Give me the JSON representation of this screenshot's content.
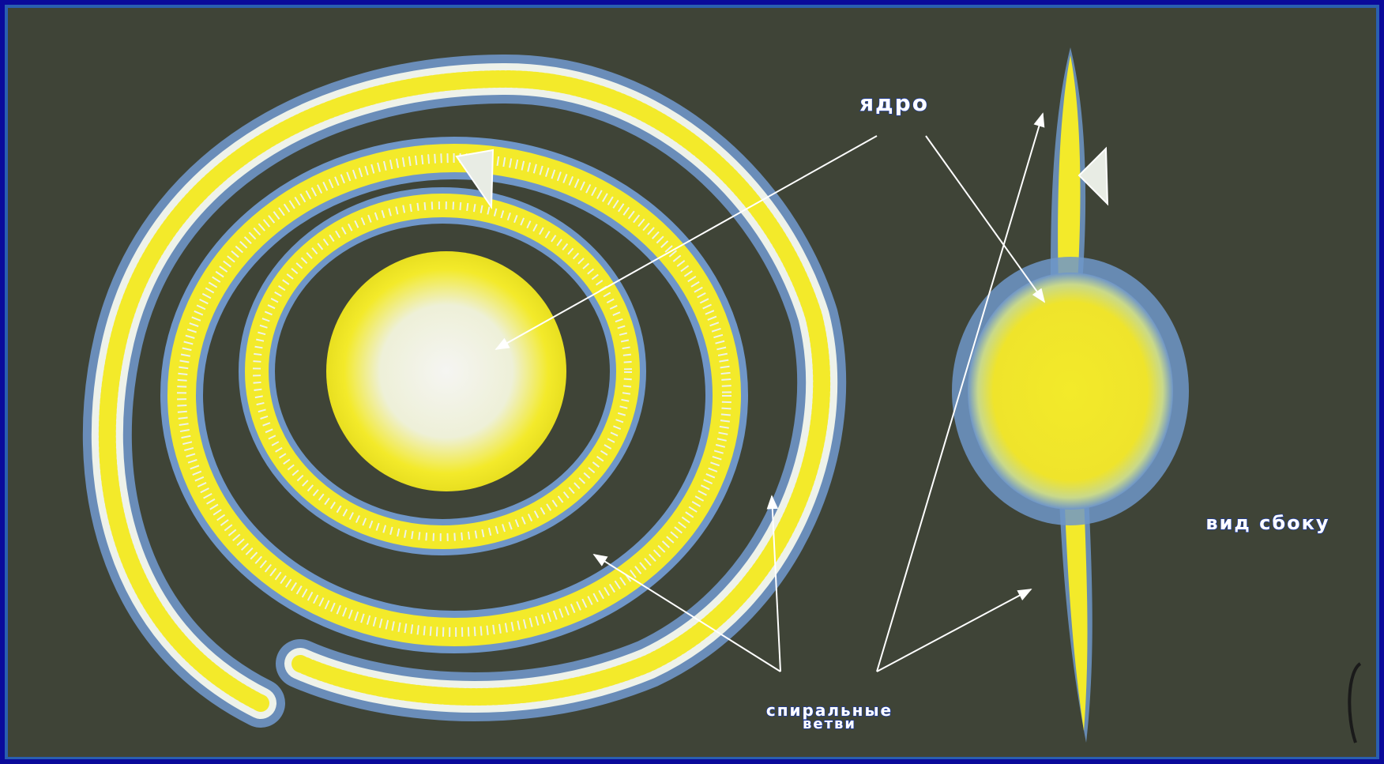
{
  "colors": {
    "frame": "#0a0a9a",
    "background": "#3f4437",
    "arm_yellow": "#f3ea2a",
    "arm_blue": "#6f96c8",
    "arm_white": "#eef2ea",
    "nucleus": "#eef0ee",
    "arrow": "#ffffff",
    "label_outline": "#1a3aa8"
  },
  "labels": {
    "nucleus": "ядро",
    "side_view": "вид сбоку",
    "spiral_arms_line1": "спиральные",
    "spiral_arms_line2": "ветви"
  }
}
